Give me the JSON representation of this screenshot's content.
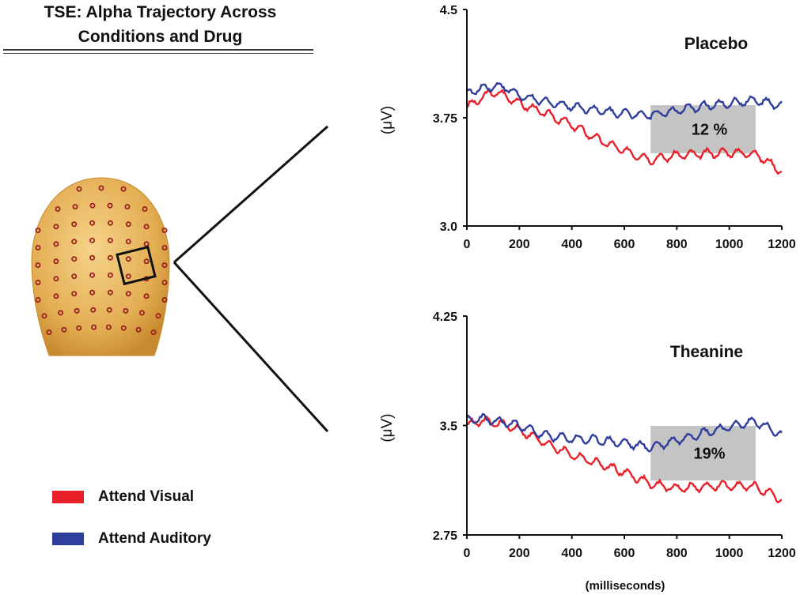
{
  "title_line1": "TSE: Alpha Trajectory Across",
  "title_line2": "Conditions and Drug",
  "legend": [
    {
      "label": "Attend Visual",
      "color": "#e8202a"
    },
    {
      "label": "Attend Auditory",
      "color": "#2f3d9c"
    }
  ],
  "colors": {
    "visual": "#e8202a",
    "auditory": "#2f3d9c",
    "shade": "#c4c4c4",
    "head": "#e3ad52",
    "electrode": "#9b1f1f"
  },
  "head_icon": "eeg-electrode-head-icon",
  "chart_data": [
    {
      "type": "line",
      "title": "Placebo",
      "xlabel": "",
      "ylabel": "(μV)",
      "xlim": [
        0,
        1200
      ],
      "ylim": [
        3.0,
        4.5
      ],
      "yticks": [
        "3.0",
        "3.75",
        "4.5"
      ],
      "xticks": [
        "0",
        "200",
        "400",
        "600",
        "800",
        "1000",
        "1200"
      ],
      "shaded_region": {
        "x": [
          700,
          1100
        ],
        "label": "12 %"
      },
      "series": [
        {
          "name": "Attend Visual",
          "x": [
            0,
            50,
            100,
            150,
            200,
            300,
            400,
            500,
            600,
            700,
            800,
            900,
            1000,
            1100,
            1200
          ],
          "y": [
            3.82,
            3.88,
            3.93,
            3.9,
            3.85,
            3.78,
            3.7,
            3.6,
            3.52,
            3.46,
            3.49,
            3.5,
            3.51,
            3.5,
            3.38
          ]
        },
        {
          "name": "Attend Auditory",
          "x": [
            0,
            50,
            100,
            150,
            200,
            300,
            400,
            500,
            600,
            700,
            800,
            900,
            1000,
            1100,
            1200
          ],
          "y": [
            3.92,
            3.95,
            3.97,
            3.96,
            3.9,
            3.86,
            3.83,
            3.8,
            3.78,
            3.77,
            3.8,
            3.83,
            3.85,
            3.87,
            3.83
          ]
        }
      ]
    },
    {
      "type": "line",
      "title": "Theanine",
      "xlabel": "(milliseconds)",
      "ylabel": "(μV)",
      "xlim": [
        0,
        1200
      ],
      "ylim": [
        2.75,
        4.25
      ],
      "yticks": [
        "2.75",
        "3.5",
        "4.25"
      ],
      "xticks": [
        "0",
        "200",
        "400",
        "600",
        "800",
        "1000",
        "1200"
      ],
      "shaded_region": {
        "x": [
          700,
          1100
        ],
        "label": "19%"
      },
      "series": [
        {
          "name": "Attend Visual",
          "x": [
            0,
            50,
            100,
            150,
            200,
            300,
            400,
            500,
            600,
            700,
            800,
            900,
            1000,
            1100,
            1200
          ],
          "y": [
            3.5,
            3.53,
            3.52,
            3.5,
            3.47,
            3.38,
            3.3,
            3.24,
            3.18,
            3.1,
            3.07,
            3.08,
            3.09,
            3.08,
            2.99
          ]
        },
        {
          "name": "Attend Auditory",
          "x": [
            0,
            50,
            100,
            150,
            200,
            300,
            400,
            500,
            600,
            700,
            800,
            900,
            1000,
            1100,
            1200
          ],
          "y": [
            3.53,
            3.55,
            3.53,
            3.52,
            3.5,
            3.43,
            3.41,
            3.4,
            3.38,
            3.35,
            3.4,
            3.45,
            3.49,
            3.53,
            3.43
          ]
        }
      ]
    }
  ]
}
